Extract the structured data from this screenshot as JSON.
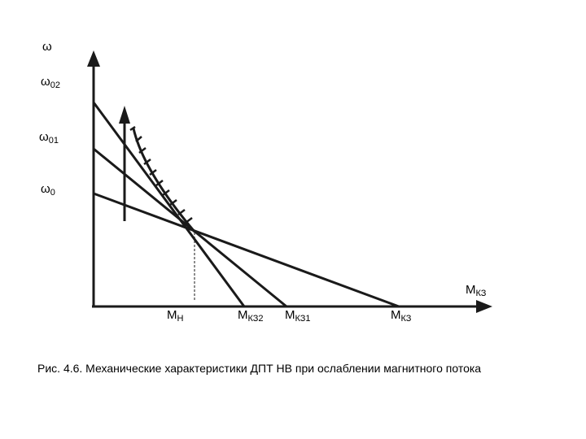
{
  "axes": {
    "y_symbol": "ω",
    "x_symbol": "M",
    "x_subscript": "КЗ"
  },
  "y_labels": [
    {
      "main": "ω",
      "sub": "02"
    },
    {
      "main": "ω",
      "sub": "01"
    },
    {
      "main": "ω",
      "sub": "0"
    }
  ],
  "x_labels": [
    {
      "main": "M",
      "sub": "Н"
    },
    {
      "main": "M",
      "sub": "КЗ2"
    },
    {
      "main": "M",
      "sub": "КЗ1"
    },
    {
      "main": "M",
      "sub": "КЗ"
    }
  ],
  "caption": "Рис. 4.6. Механические характеристики ДПТ НВ при ослаблении магнитного потока",
  "colors": {
    "line": "#1a1a1a",
    "background": "#ffffff"
  }
}
